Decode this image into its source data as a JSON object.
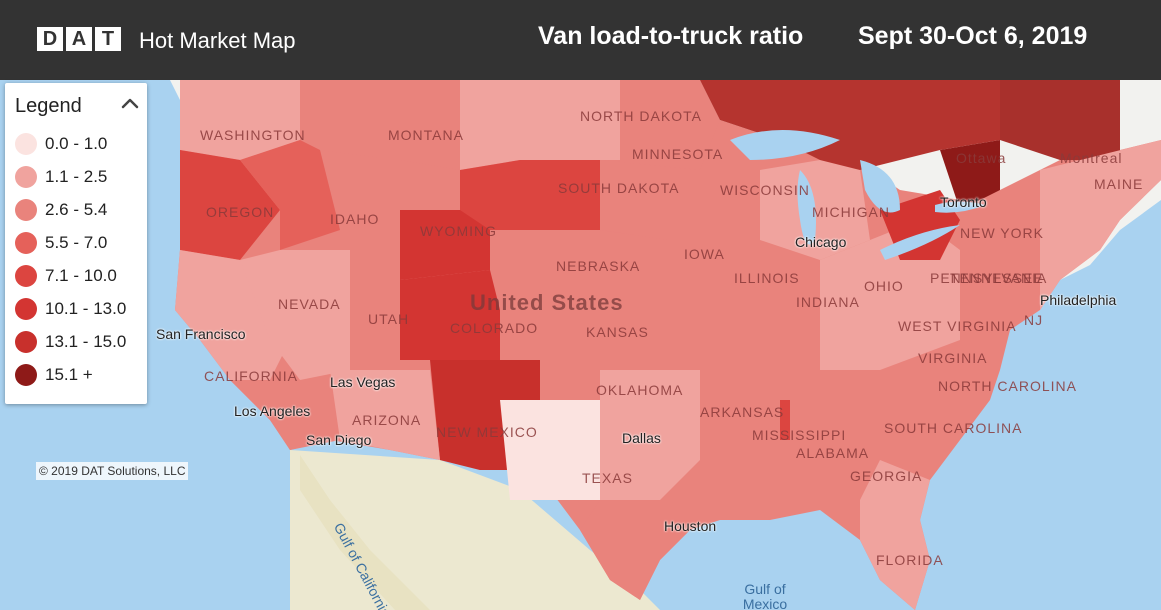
{
  "header": {
    "logo_letters": [
      "D",
      "A",
      "T"
    ],
    "app_title": "Hot Market Map",
    "map_title": "Van load-to-truck ratio",
    "date_range": "Sept 30-Oct 6, 2019"
  },
  "legend": {
    "title": "Legend",
    "toggle_icon": "chevron-up-icon",
    "items": [
      {
        "label": "0.0 - 1.0",
        "color": "#fbe3e0"
      },
      {
        "label": "1.1 - 2.5",
        "color": "#f0a39e"
      },
      {
        "label": "2.6 - 5.4",
        "color": "#e9837c"
      },
      {
        "label": "5.5 - 7.0",
        "color": "#e5615a"
      },
      {
        "label": "7.1 - 10.0",
        "color": "#dc4540"
      },
      {
        "label": "10.1 - 13.0",
        "color": "#d33532"
      },
      {
        "label": "13.1 - 15.0",
        "color": "#c8302c"
      },
      {
        "label": "15.1 +",
        "color": "#8e1a18"
      }
    ]
  },
  "map": {
    "country_label": "United States",
    "state_labels": [
      "WASHINGTON",
      "MONTANA",
      "NORTH DAKOTA",
      "MINNESOTA",
      "OREGON",
      "IDAHO",
      "WYOMING",
      "SOUTH DAKOTA",
      "WISCONSIN",
      "MICHIGAN",
      "NEW YORK",
      "NEBRASKA",
      "IOWA",
      "NEVADA",
      "UTAH",
      "COLORADO",
      "KANSAS",
      "ILLINOIS",
      "INDIANA",
      "OHIO",
      "PENNSYLVANIA",
      "NJ",
      "WEST VIRGINIA",
      "VIRGINIA",
      "CALIFORNIA",
      "ARIZONA",
      "NEW MEXICO",
      "OKLAHOMA",
      "ARKANSAS",
      "MISSISSIPPI",
      "ALABAMA",
      "GEORGIA",
      "SOUTH CAROLINA",
      "NORTH CAROLINA",
      "TENNESSEE",
      "TEXAS",
      "FLORIDA",
      "MAINE",
      "Ottawa",
      "Montreal"
    ],
    "cities": [
      "Chicago",
      "Philadelphia",
      "San Francisco",
      "Las Vegas",
      "Los Angeles",
      "San Diego",
      "Dallas",
      "Houston",
      "Toronto"
    ],
    "water_labels": [
      "Gulf of California",
      "Gulf of Mexico"
    ],
    "colors": {
      "water": "#a9d2f0",
      "land_mexico": "#ece8d0",
      "canada_land": "#f2f2ef",
      "border": "#ffffff"
    }
  },
  "copyright": "© 2019 DAT Solutions, LLC"
}
